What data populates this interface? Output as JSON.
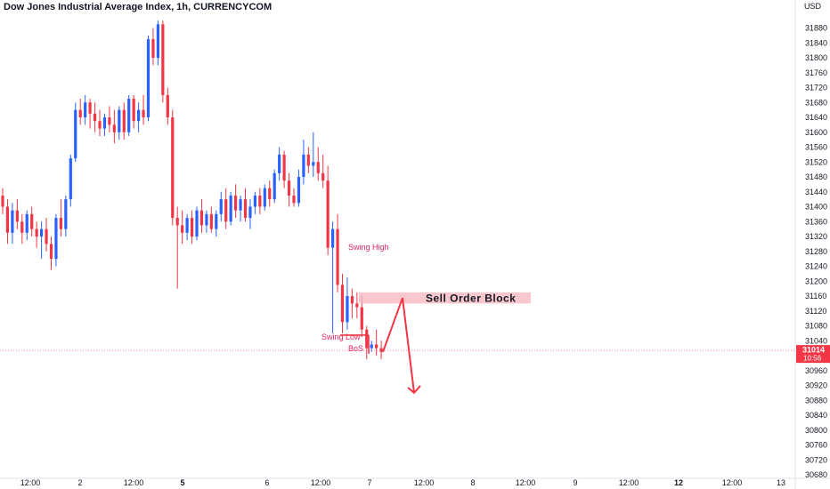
{
  "header": {
    "title": "Dow Jones Industrial Average Index, 1h, CURRENCYCOM",
    "currency": "USD"
  },
  "colors": {
    "up": "#2962ff",
    "down": "#f23645",
    "annotation": "#e0245e",
    "order_block": "#f7b6bd",
    "price_tag": "#f23645",
    "axis_border": "#e0e3eb"
  },
  "chart_data": {
    "type": "candlestick",
    "y_ticks": [
      31880,
      31840,
      31800,
      31760,
      31720,
      31680,
      31640,
      31600,
      31560,
      31520,
      31480,
      31440,
      31400,
      31360,
      31320,
      31280,
      31240,
      31200,
      31160,
      31120,
      31080,
      31040,
      31000,
      30960,
      30920,
      30880,
      30840,
      30800,
      30760,
      30720,
      30680
    ],
    "ylim": [
      30655,
      31900
    ],
    "x_ticks": [
      {
        "label": "12:00",
        "bold": false
      },
      {
        "label": "2",
        "bold": false
      },
      {
        "label": "12:00",
        "bold": false
      },
      {
        "label": "5",
        "bold": true
      },
      {
        "label": "6",
        "bold": false
      },
      {
        "label": "12:00",
        "bold": false
      },
      {
        "label": "7",
        "bold": false
      },
      {
        "label": "12:00",
        "bold": false
      },
      {
        "label": "8",
        "bold": false
      },
      {
        "label": "12:00",
        "bold": false
      },
      {
        "label": "9",
        "bold": false
      },
      {
        "label": "12:00",
        "bold": false
      },
      {
        "label": "12",
        "bold": true
      },
      {
        "label": "12:00",
        "bold": false
      },
      {
        "label": "13",
        "bold": false
      }
    ],
    "candles": [
      [
        31430,
        31450,
        31380,
        31400
      ],
      [
        31400,
        31420,
        31300,
        31330
      ],
      [
        31330,
        31410,
        31300,
        31390
      ],
      [
        31390,
        31420,
        31340,
        31360
      ],
      [
        31360,
        31380,
        31300,
        31330
      ],
      [
        31330,
        31390,
        31310,
        31380
      ],
      [
        31380,
        31400,
        31320,
        31340
      ],
      [
        31340,
        31360,
        31290,
        31320
      ],
      [
        31320,
        31360,
        31260,
        31340
      ],
      [
        31340,
        31370,
        31280,
        31300
      ],
      [
        31300,
        31320,
        31230,
        31260
      ],
      [
        31260,
        31380,
        31240,
        31370
      ],
      [
        31370,
        31420,
        31320,
        31340
      ],
      [
        31340,
        31430,
        31320,
        31420
      ],
      [
        31420,
        31540,
        31400,
        31530
      ],
      [
        31530,
        31680,
        31520,
        31660
      ],
      [
        31660,
        31690,
        31620,
        31640
      ],
      [
        31640,
        31700,
        31620,
        31680
      ],
      [
        31680,
        31690,
        31610,
        31650
      ],
      [
        31650,
        31680,
        31600,
        31630
      ],
      [
        31630,
        31660,
        31590,
        31610
      ],
      [
        31610,
        31650,
        31590,
        31640
      ],
      [
        31640,
        31670,
        31600,
        31620
      ],
      [
        31620,
        31660,
        31570,
        31600
      ],
      [
        31600,
        31670,
        31580,
        31660
      ],
      [
        31660,
        31680,
        31580,
        31600
      ],
      [
        31600,
        31700,
        31590,
        31690
      ],
      [
        31690,
        31700,
        31610,
        31630
      ],
      [
        31630,
        31680,
        31600,
        31660
      ],
      [
        31660,
        31700,
        31620,
        31640
      ],
      [
        31640,
        31860,
        31630,
        31850
      ],
      [
        31850,
        31880,
        31780,
        31800
      ],
      [
        31800,
        31900,
        31780,
        31890
      ],
      [
        31890,
        31900,
        31680,
        31700
      ],
      [
        31700,
        31720,
        31620,
        31640
      ],
      [
        31640,
        31660,
        31350,
        31370
      ],
      [
        31370,
        31400,
        31180,
        31350
      ],
      [
        31350,
        31390,
        31300,
        31330
      ],
      [
        31330,
        31380,
        31310,
        31370
      ],
      [
        31370,
        31390,
        31300,
        31320
      ],
      [
        31320,
        31400,
        31310,
        31390
      ],
      [
        31390,
        31420,
        31330,
        31350
      ],
      [
        31350,
        31390,
        31330,
        31380
      ],
      [
        31380,
        31400,
        31330,
        31340
      ],
      [
        31340,
        31390,
        31320,
        31380
      ],
      [
        31380,
        31440,
        31360,
        31420
      ],
      [
        31420,
        31450,
        31340,
        31360
      ],
      [
        31360,
        31440,
        31350,
        31430
      ],
      [
        31430,
        31460,
        31370,
        31390
      ],
      [
        31390,
        31430,
        31360,
        31420
      ],
      [
        31420,
        31450,
        31360,
        31370
      ],
      [
        31370,
        31420,
        31340,
        31400
      ],
      [
        31400,
        31440,
        31380,
        31430
      ],
      [
        31430,
        31450,
        31380,
        31400
      ],
      [
        31400,
        31460,
        31390,
        31450
      ],
      [
        31450,
        31470,
        31400,
        31420
      ],
      [
        31420,
        31500,
        31410,
        31490
      ],
      [
        31490,
        31560,
        31470,
        31540
      ],
      [
        31540,
        31550,
        31450,
        31470
      ],
      [
        31470,
        31490,
        31400,
        31430
      ],
      [
        31430,
        31450,
        31400,
        31410
      ],
      [
        31410,
        31500,
        31400,
        31480
      ],
      [
        31480,
        31580,
        31460,
        31540
      ],
      [
        31540,
        31560,
        31490,
        31510
      ],
      [
        31510,
        31600,
        31480,
        31520
      ],
      [
        31520,
        31560,
        31470,
        31490
      ],
      [
        31490,
        31540,
        31450,
        31470
      ],
      [
        31470,
        31510,
        31270,
        31290
      ],
      [
        31290,
        31360,
        31060,
        31340
      ],
      [
        31340,
        31380,
        31170,
        31190
      ],
      [
        31190,
        31220,
        31060,
        31090
      ],
      [
        31090,
        31210,
        31070,
        31160
      ],
      [
        31160,
        31180,
        31100,
        31140
      ],
      [
        31140,
        31170,
        31100,
        31130
      ],
      [
        31130,
        31160,
        31050,
        31070
      ],
      [
        31070,
        31080,
        30990,
        31020
      ],
      [
        31020,
        31040,
        31010,
        31030
      ],
      [
        31030,
        31070,
        31000,
        31020
      ],
      [
        31020,
        31040,
        30990,
        31010
      ]
    ],
    "last_price": 31014,
    "countdown": "10:56",
    "annotations": {
      "swing_high": "Swing High",
      "swing_low": "Swing Low",
      "bos": "BoS",
      "order_block": "Sell Order Block",
      "order_block_range": [
        31140,
        31170
      ],
      "bos_level": 31055,
      "projection": [
        [
          31010,
          31155
        ],
        [
          31155,
          30900
        ]
      ]
    }
  }
}
